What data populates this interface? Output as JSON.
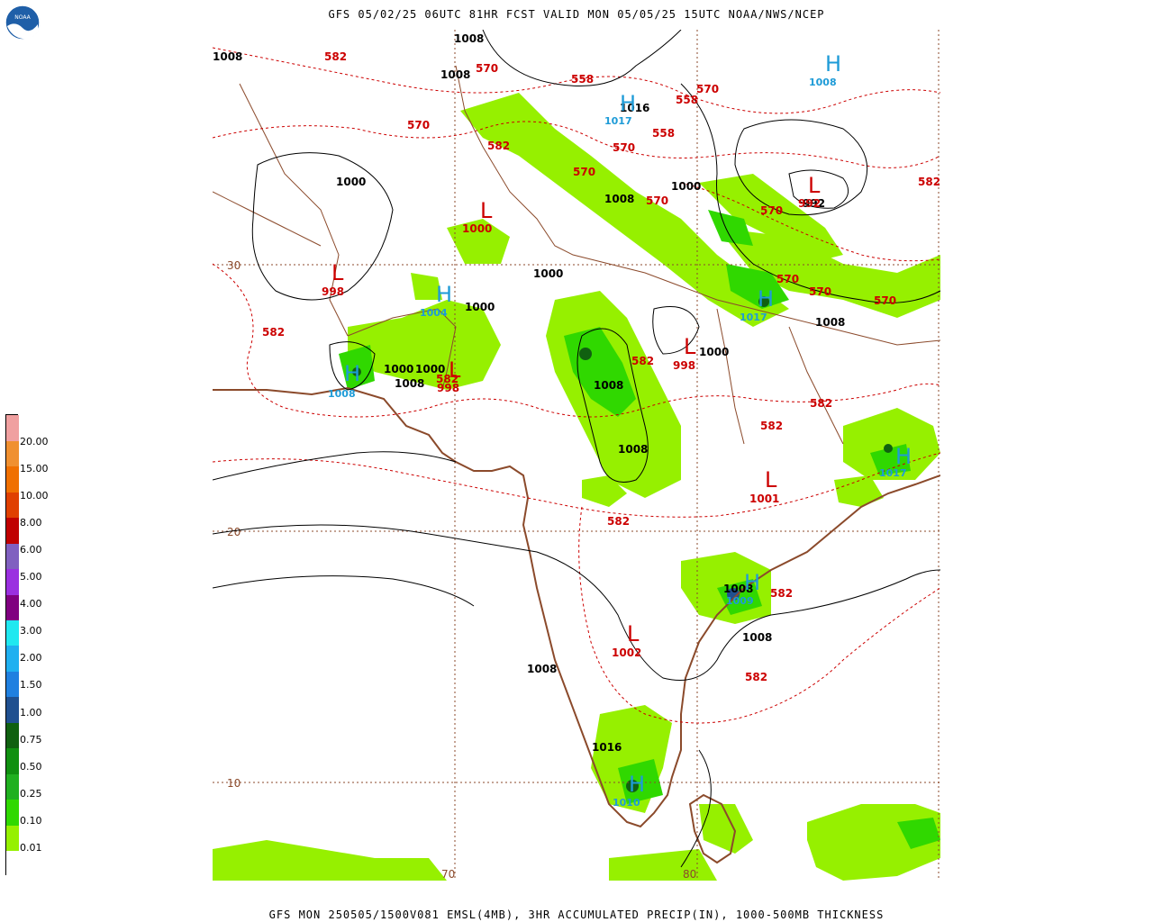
{
  "header": {
    "title": "GFS 05/02/25 06UTC 81HR FCST VALID MON 05/05/25 15UTC NOAA/NWS/NCEP"
  },
  "footer": {
    "title": "GFS MON 250505/1500V081 EMSL(4MB), 3HR ACCUMULATED PRECIP(IN), 1000-500MB THICKNESS"
  },
  "logo": {
    "text": "NOAA"
  },
  "legend": {
    "labels": [
      "0.01",
      "0.10",
      "0.25",
      "0.50",
      "0.75",
      "1.00",
      "1.50",
      "2.00",
      "3.00",
      "4.00",
      "5.00",
      "6.00",
      "8.00",
      "10.00",
      "15.00",
      "20.00"
    ],
    "colors": [
      "#ffffff",
      "#96f000",
      "#30d800",
      "#20b020",
      "#109010",
      "#106010",
      "#205090",
      "#2080e0",
      "#20b0f0",
      "#20e8f0",
      "#800080",
      "#9a30e0",
      "#8060c0",
      "#c00000",
      "#e04000",
      "#f07000",
      "#f09030",
      "#f0a0a0"
    ]
  },
  "grid": {
    "lat_labels": [
      "30",
      "20",
      "10"
    ],
    "lon_labels": [
      "70",
      "80"
    ]
  },
  "map_labels": {
    "thickness": [
      "582",
      "570",
      "582",
      "570",
      "558",
      "558",
      "570",
      "558",
      "570",
      "570",
      "582",
      "582",
      "570",
      "570",
      "570",
      "570",
      "570",
      "582",
      "582",
      "582",
      "582",
      "582",
      "582",
      "582"
    ],
    "pressure": [
      "1008",
      "1008",
      "1008",
      "1016",
      "1000",
      "1000",
      "1008",
      "1000",
      "1000",
      "1000",
      "1000",
      "1008",
      "1000",
      "1008",
      "1008",
      "1008",
      "1008",
      "1008",
      "1008",
      "992"
    ],
    "high_values": [
      "1008",
      "1017",
      "1004",
      "1008",
      "1017",
      "1017",
      "1009",
      "1010"
    ],
    "low_values": [
      "1000",
      "998",
      "998",
      "998",
      "1001",
      "1002",
      "992"
    ],
    "high_symbol": "H",
    "low_symbol": "L"
  }
}
